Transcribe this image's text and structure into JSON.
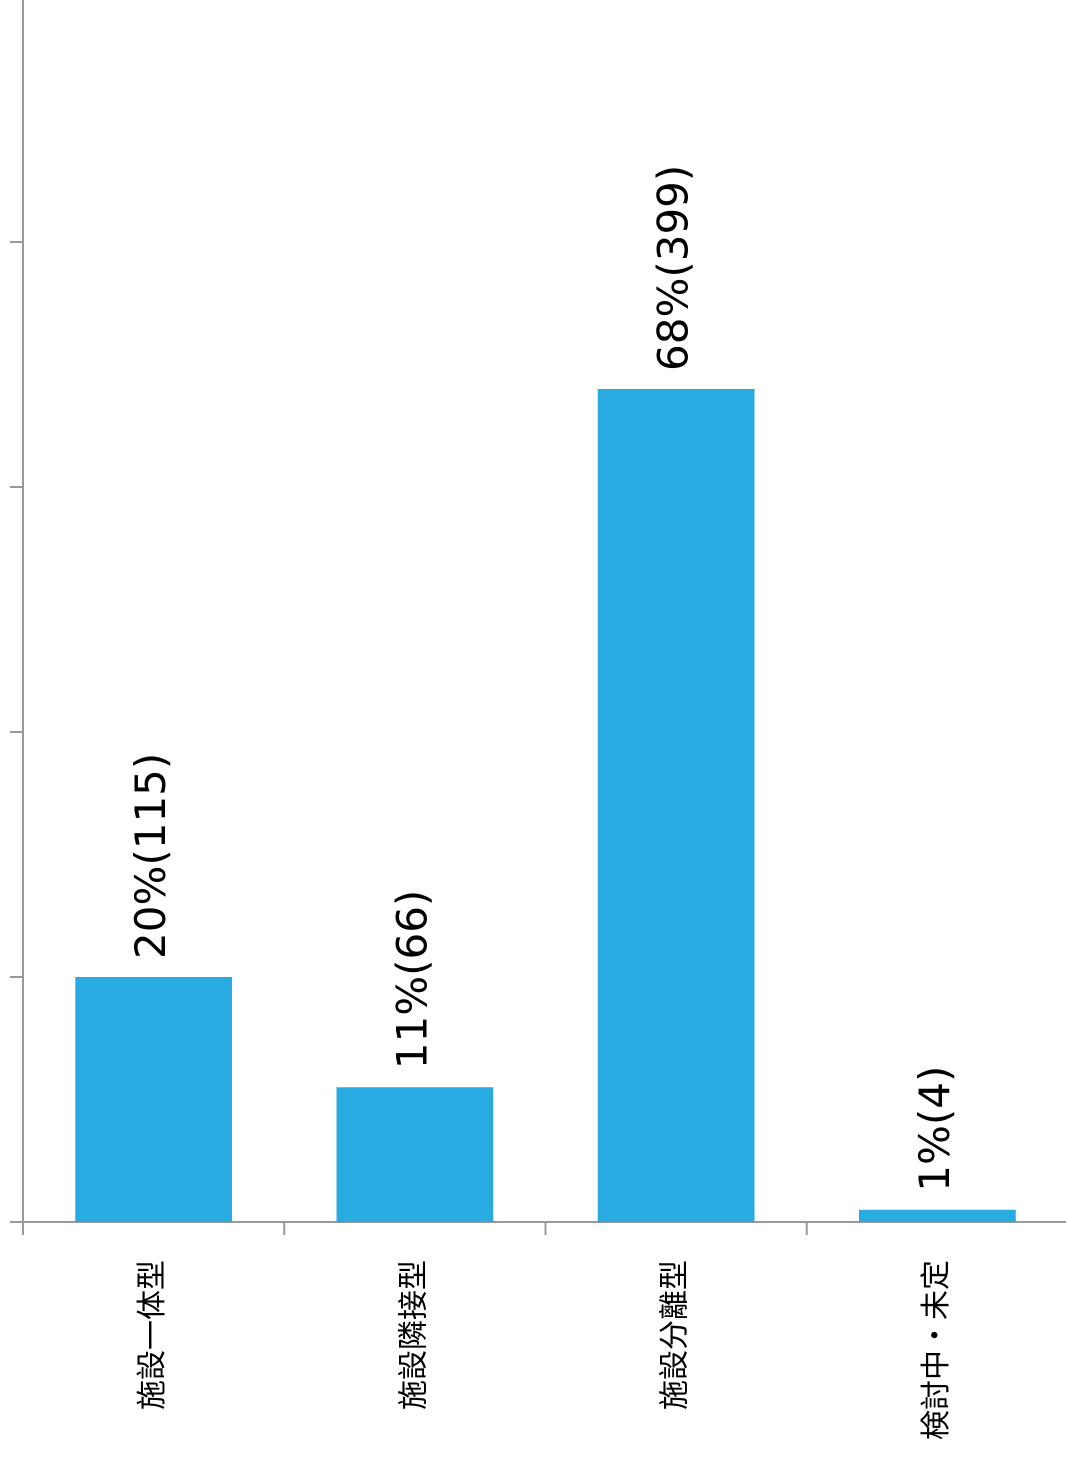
{
  "chart_data": {
    "type": "bar",
    "categories": [
      "施設一体型",
      "施設隣接型",
      "施設分離型",
      "検討中・未定"
    ],
    "values": [
      20,
      11,
      68,
      1
    ],
    "value_labels": [
      "20%(115)",
      "11%(66)",
      "68%(399)",
      "1%(4)"
    ],
    "color": "#29abe2",
    "ylim": [
      0,
      100
    ],
    "yticks": [
      0,
      20,
      40,
      60,
      80
    ]
  }
}
